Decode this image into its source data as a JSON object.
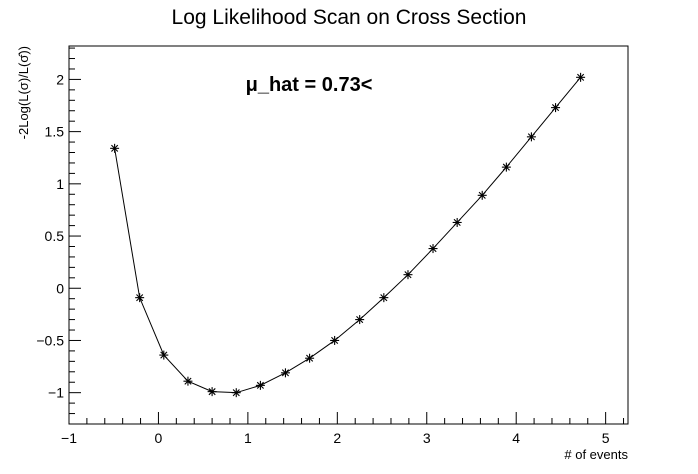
{
  "chart_data": {
    "type": "line",
    "title": "Log Likelihood Scan on Cross Section",
    "xlabel": "# of events",
    "ylabel": "-2Log(L(σ)/L(σ̂))",
    "annotation": "μ_hat = 0.73<",
    "xlim": [
      -1,
      5.25
    ],
    "ylim": [
      -1.3,
      2.32
    ],
    "xticks": [
      -1,
      0,
      1,
      2,
      3,
      4,
      5
    ],
    "yticks": [
      -1,
      -0.5,
      0,
      0.5,
      1,
      1.5,
      2
    ],
    "xtick_labels": [
      "−1",
      "0",
      "1",
      "2",
      "3",
      "4",
      "5"
    ],
    "ytick_labels": [
      "−1",
      "−0.5",
      "0",
      "0.5",
      "1",
      "1.5",
      "2"
    ],
    "grid": false,
    "marker": "asterisk",
    "color": "#000000",
    "series": [
      {
        "x": [
          -0.49,
          -0.21,
          0.06,
          0.33,
          0.6,
          0.87,
          1.14,
          1.42,
          1.69,
          1.97,
          2.25,
          2.52,
          2.79,
          3.07,
          3.34,
          3.62,
          3.89,
          4.17,
          4.44,
          4.72
        ],
        "y": [
          1.34,
          -0.09,
          -0.64,
          -0.89,
          -0.99,
          -1.0,
          -0.93,
          -0.81,
          -0.67,
          -0.5,
          -0.3,
          -0.09,
          0.13,
          0.38,
          0.63,
          0.89,
          1.16,
          1.45,
          1.73,
          2.02
        ]
      }
    ]
  }
}
